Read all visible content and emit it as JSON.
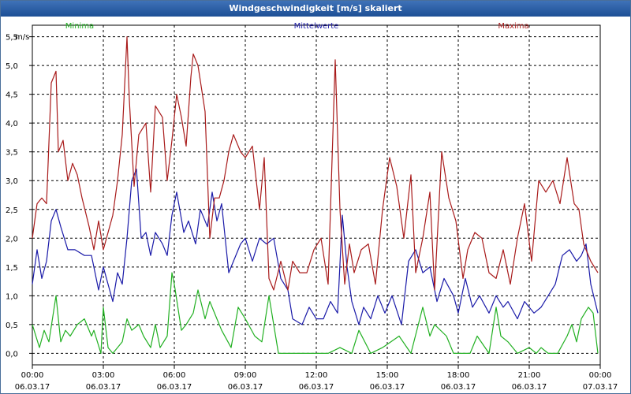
{
  "window": {
    "title": "Windgeschwindigkeit [m/s] skaliert"
  },
  "chart_data": {
    "type": "line",
    "title": "Windgeschwindigkeit [m/s] skaliert",
    "ylabel": "m/s",
    "xlabel": "",
    "ylim": [
      -0.2,
      5.7
    ],
    "xlim": [
      0,
      24
    ],
    "yticks": [
      "0,0",
      "0,5",
      "1,0",
      "1,5",
      "2,0",
      "2,5",
      "3,0",
      "3,5",
      "4,0",
      "4,5",
      "5,0",
      "5,5"
    ],
    "ytick_values": [
      0,
      0.5,
      1,
      1.5,
      2,
      2.5,
      3,
      3.5,
      4,
      4.5,
      5,
      5.5
    ],
    "xticks": [
      {
        "time": "00:00",
        "date": "06.03.17"
      },
      {
        "time": "03:00",
        "date": "06.03.17"
      },
      {
        "time": "06:00",
        "date": "06.03.17"
      },
      {
        "time": "09:00",
        "date": "06.03.17"
      },
      {
        "time": "12:00",
        "date": "06.03.17"
      },
      {
        "time": "15:00",
        "date": "06.03.17"
      },
      {
        "time": "18:00",
        "date": "06.03.17"
      },
      {
        "time": "21:00",
        "date": "06.03.17"
      },
      {
        "time": "00:00",
        "date": "07.03.17"
      }
    ],
    "xtick_values": [
      0,
      3,
      6,
      9,
      12,
      15,
      18,
      21,
      24
    ],
    "grid": true,
    "legend_position": "top",
    "series": [
      {
        "name": "Minima",
        "color": "#22b022",
        "x": [
          0.0,
          0.3,
          0.5,
          0.7,
          1.0,
          1.2,
          1.4,
          1.6,
          1.9,
          2.2,
          2.5,
          2.6,
          2.9,
          3.0,
          3.2,
          3.4,
          3.6,
          3.8,
          4.0,
          4.2,
          4.5,
          4.7,
          5.0,
          5.2,
          5.4,
          5.7,
          5.9,
          6.0,
          6.3,
          6.5,
          6.8,
          7.0,
          7.3,
          7.5,
          7.8,
          8.0,
          8.4,
          8.7,
          9.0,
          9.4,
          9.7,
          10.0,
          10.4,
          11.0,
          11.8,
          12.5,
          13.0,
          13.5,
          13.8,
          14.3,
          14.8,
          15.5,
          16.0,
          16.5,
          16.8,
          17.0,
          17.5,
          17.8,
          18.2,
          18.5,
          18.8,
          19.3,
          19.6,
          19.8,
          20.1,
          20.5,
          21.0,
          21.3,
          21.5,
          21.8,
          22.2,
          22.6,
          22.8,
          23.0,
          23.2,
          23.5,
          23.7,
          23.9
        ],
        "values": [
          0.5,
          0.1,
          0.4,
          0.2,
          1.0,
          0.2,
          0.4,
          0.3,
          0.5,
          0.6,
          0.3,
          0.4,
          0.0,
          0.8,
          0.1,
          0.0,
          0.1,
          0.2,
          0.6,
          0.4,
          0.5,
          0.3,
          0.1,
          0.5,
          0.1,
          0.3,
          1.4,
          1.2,
          0.4,
          0.5,
          0.7,
          1.1,
          0.6,
          0.9,
          0.6,
          0.4,
          0.1,
          0.8,
          0.6,
          0.3,
          0.2,
          1.0,
          0.0,
          0.0,
          0.0,
          0.0,
          0.1,
          0.0,
          0.4,
          0.0,
          0.1,
          0.3,
          0.0,
          0.8,
          0.3,
          0.5,
          0.3,
          0.0,
          0.0,
          0.0,
          0.3,
          0.0,
          0.8,
          0.3,
          0.2,
          0.0,
          0.1,
          0.0,
          0.1,
          0.0,
          0.0,
          0.3,
          0.5,
          0.2,
          0.6,
          0.8,
          0.7,
          0.0
        ]
      },
      {
        "name": "Mittelwerte",
        "color": "#1a1aa8",
        "x": [
          0.0,
          0.2,
          0.4,
          0.6,
          0.8,
          1.0,
          1.2,
          1.5,
          1.8,
          2.2,
          2.5,
          2.8,
          3.0,
          3.2,
          3.4,
          3.6,
          3.8,
          4.0,
          4.2,
          4.4,
          4.6,
          4.8,
          5.0,
          5.2,
          5.5,
          5.7,
          5.9,
          6.1,
          6.4,
          6.6,
          6.9,
          7.1,
          7.4,
          7.6,
          7.8,
          8.0,
          8.3,
          8.5,
          8.8,
          9.0,
          9.3,
          9.6,
          9.9,
          10.2,
          10.5,
          10.8,
          11.0,
          11.4,
          11.7,
          12.0,
          12.3,
          12.6,
          12.9,
          13.1,
          13.3,
          13.5,
          13.8,
          14.0,
          14.3,
          14.6,
          14.9,
          15.2,
          15.6,
          15.9,
          16.2,
          16.5,
          16.8,
          17.1,
          17.4,
          17.8,
          18.0,
          18.3,
          18.6,
          18.9,
          19.3,
          19.6,
          19.9,
          20.1,
          20.5,
          20.8,
          21.2,
          21.5,
          21.8,
          22.1,
          22.4,
          22.7,
          23.0,
          23.2,
          23.4,
          23.6,
          23.9
        ],
        "values": [
          1.2,
          1.8,
          1.3,
          1.6,
          2.3,
          2.5,
          2.2,
          1.8,
          1.8,
          1.7,
          1.7,
          1.1,
          1.5,
          1.2,
          0.9,
          1.4,
          1.2,
          2.0,
          3.0,
          3.2,
          2.0,
          2.1,
          1.7,
          2.1,
          1.9,
          1.7,
          2.4,
          2.8,
          2.1,
          2.3,
          1.9,
          2.5,
          2.2,
          2.8,
          2.3,
          2.6,
          1.4,
          1.6,
          1.9,
          2.0,
          1.6,
          2.0,
          1.9,
          2.0,
          1.3,
          1.1,
          0.6,
          0.5,
          0.8,
          0.6,
          0.6,
          0.9,
          0.7,
          2.4,
          1.5,
          0.9,
          0.5,
          0.8,
          0.6,
          1.0,
          0.7,
          1.0,
          0.5,
          1.6,
          1.8,
          1.4,
          1.5,
          0.9,
          1.3,
          1.0,
          0.7,
          1.3,
          0.8,
          1.0,
          0.7,
          1.0,
          0.8,
          0.9,
          0.6,
          0.9,
          0.7,
          0.8,
          1.0,
          1.2,
          1.7,
          1.8,
          1.6,
          1.7,
          1.9,
          1.2,
          0.7
        ]
      },
      {
        "name": "Maxima",
        "color": "#a81a1a",
        "x": [
          0.0,
          0.2,
          0.4,
          0.6,
          0.8,
          1.0,
          1.1,
          1.3,
          1.5,
          1.7,
          1.9,
          2.1,
          2.4,
          2.6,
          2.8,
          3.0,
          3.2,
          3.4,
          3.6,
          3.8,
          4.0,
          4.1,
          4.3,
          4.5,
          4.8,
          5.0,
          5.2,
          5.5,
          5.7,
          5.9,
          6.1,
          6.3,
          6.5,
          6.7,
          6.8,
          7.0,
          7.3,
          7.5,
          7.7,
          7.9,
          8.1,
          8.3,
          8.5,
          8.8,
          9.0,
          9.3,
          9.6,
          9.8,
          10.0,
          10.2,
          10.5,
          10.8,
          11.0,
          11.3,
          11.6,
          11.9,
          12.2,
          12.5,
          12.8,
          13.0,
          13.2,
          13.4,
          13.6,
          13.9,
          14.2,
          14.5,
          14.8,
          15.1,
          15.4,
          15.7,
          16.0,
          16.2,
          16.5,
          16.8,
          17.0,
          17.3,
          17.6,
          17.9,
          18.2,
          18.4,
          18.7,
          19.0,
          19.3,
          19.6,
          19.9,
          20.2,
          20.5,
          20.8,
          21.1,
          21.4,
          21.7,
          22.0,
          22.3,
          22.6,
          22.9,
          23.1,
          23.3,
          23.6,
          23.9
        ],
        "values": [
          2.0,
          2.6,
          2.7,
          2.6,
          4.7,
          4.9,
          3.5,
          3.7,
          3.0,
          3.3,
          3.1,
          2.7,
          2.2,
          1.8,
          2.3,
          1.8,
          2.1,
          2.4,
          3.0,
          3.8,
          5.5,
          4.4,
          2.9,
          3.8,
          4.0,
          2.8,
          4.3,
          4.1,
          3.0,
          3.7,
          4.5,
          4.1,
          3.6,
          4.8,
          5.2,
          5.0,
          4.2,
          2.0,
          2.7,
          2.7,
          3.0,
          3.5,
          3.8,
          3.5,
          3.4,
          3.6,
          2.5,
          3.4,
          1.3,
          1.1,
          1.6,
          1.1,
          1.6,
          1.4,
          1.4,
          1.8,
          2.0,
          1.2,
          5.1,
          2.5,
          1.2,
          1.9,
          1.4,
          1.8,
          1.9,
          1.2,
          2.5,
          3.4,
          2.9,
          2.0,
          3.1,
          1.4,
          2.0,
          2.8,
          1.1,
          3.5,
          2.7,
          2.3,
          1.3,
          1.8,
          2.1,
          2.0,
          1.4,
          1.3,
          1.8,
          1.2,
          2.0,
          2.6,
          1.6,
          3.0,
          2.8,
          3.0,
          2.6,
          3.4,
          2.6,
          2.5,
          1.9,
          1.6,
          1.4
        ]
      }
    ]
  }
}
